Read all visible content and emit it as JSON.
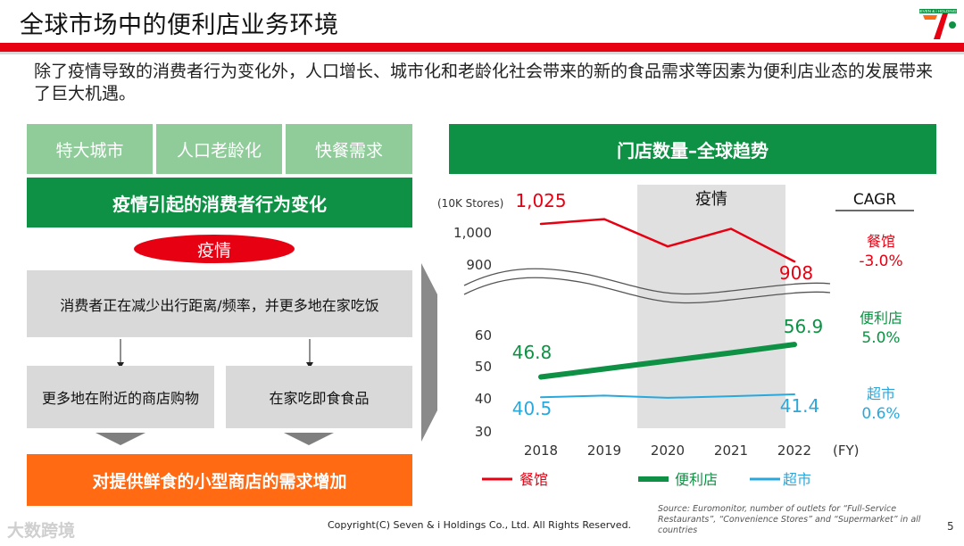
{
  "title": "全球市场中的便利店业务环境",
  "intro": "除了疫情导致的消费者行为变化外，人口增长、城市化和老龄化社会带来的新的食品需求等因素为便利店业态的发展带来了巨大机遇。",
  "left_panel": {
    "tags": [
      "特大城市",
      "人口老龄化",
      "快餐需求"
    ],
    "behavior_header": "疫情引起的消费者行为变化",
    "pandemic_label": "疫情",
    "consumer_box": "消费者正在减少出行距离/频率，并更多地在家吃饭",
    "sub_boxes": [
      "更多地在附近的商店购物",
      "在家吃即食食品"
    ],
    "result": "对提供鲜食的小型商店的需求增加"
  },
  "chart_header": "门店数量–全球趋势",
  "chart_data": {
    "type": "line",
    "unit_label": "(10K Stores)",
    "categories": [
      "2018",
      "2019",
      "2020",
      "2021",
      "2022"
    ],
    "x_unit": "(FY)",
    "shaded_period_label": "疫情",
    "cagr_header": "CAGR",
    "upper_axis_ticks": [
      "1,000",
      "900"
    ],
    "lower_axis_ticks": [
      "60",
      "50",
      "40",
      "30"
    ],
    "series": [
      {
        "name": "餐馆",
        "values": [
          1025,
          1040,
          955,
          1010,
          908
        ],
        "start_label": "1,025",
        "end_label": "908",
        "cagr": "-3.0%",
        "color": "#e60012",
        "axis": "upper"
      },
      {
        "name": "便利店",
        "values": [
          46.8,
          49.3,
          51.8,
          54.3,
          56.9
        ],
        "start_label": "46.8",
        "end_label": "56.9",
        "cagr": "5.0%",
        "color": "#0e9144",
        "axis": "lower"
      },
      {
        "name": "超市",
        "values": [
          40.5,
          41.0,
          40.3,
          40.8,
          41.4
        ],
        "start_label": "40.5",
        "end_label": "41.4",
        "cagr": "0.6%",
        "color": "#2aa8dc",
        "axis": "lower"
      }
    ]
  },
  "footer": {
    "source": "Source: Euromonitor, number of outlets for “Full-Service Restaurants”, “Convenience Stores” and “Supermarket” in all countries",
    "copyright": "Copyright(C) Seven & i Holdings Co., Ltd. All Rights Reserved.",
    "page": "5",
    "watermark": "大数跨境",
    "logo_text": "SEVEN & i HOLDINGS"
  },
  "colors": {
    "red": "#e60012",
    "green": "#0e9144",
    "light_green": "#8fcc9a",
    "orange": "#ff6a13",
    "blue": "#2aa8dc",
    "grey_box": "#d9d9d9"
  }
}
